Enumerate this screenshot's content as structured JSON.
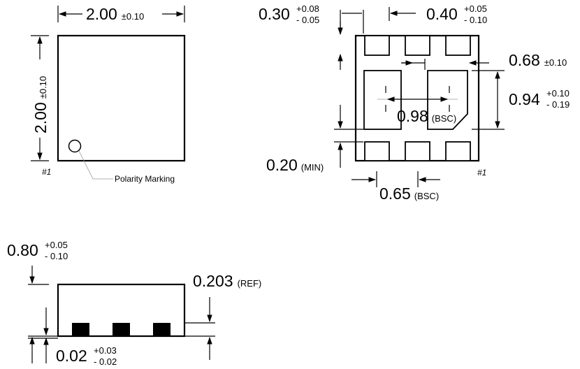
{
  "top_view": {
    "width_dim": {
      "value": "2.00",
      "tol": "±0.10"
    },
    "height_dim": {
      "value": "2.00",
      "tol": "±0.10"
    },
    "pin1_label": "#1",
    "polarity_label": "Polarity Marking"
  },
  "bottom_view": {
    "pad_length": {
      "value": "0.30",
      "tol_plus": "+0.08",
      "tol_minus": "- 0.05"
    },
    "pad_width": {
      "value": "0.40",
      "tol_plus": "+0.05",
      "tol_minus": "- 0.10"
    },
    "ep_width": {
      "value": "0.68",
      "tol": "±0.10"
    },
    "ep_height": {
      "value": "0.94",
      "tol_plus": "+0.10",
      "tol_minus": "- 0.19"
    },
    "ep_pitch": {
      "value": "0.98",
      "qualifier": "(BSC)"
    },
    "pad_gap": {
      "value": "0.20",
      "qualifier": "(MIN)"
    },
    "pitch": {
      "value": "0.65",
      "qualifier": "(BSC)"
    },
    "pin1_label": "#1"
  },
  "side_view": {
    "height": {
      "value": "0.80",
      "tol_plus": "+0.05",
      "tol_minus": "- 0.10"
    },
    "lead_thickness": {
      "value": "0.203",
      "qualifier": "(REF)"
    },
    "standoff": {
      "value": "0.02",
      "tol_plus": "+0.03",
      "tol_minus": "- 0.02"
    }
  }
}
